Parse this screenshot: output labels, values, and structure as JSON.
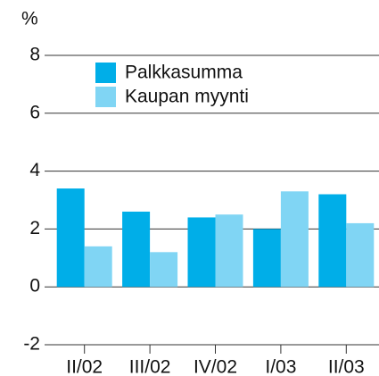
{
  "chart_data": {
    "type": "bar",
    "y_label": "%",
    "categories": [
      "II/02",
      "III/02",
      "IV/02",
      "I/03",
      "II/03"
    ],
    "series": [
      {
        "name": "Palkkasumma",
        "color": "#00aee8",
        "values": [
          3.4,
          2.6,
          2.4,
          2.0,
          3.2
        ]
      },
      {
        "name": "Kaupan myynti",
        "color": "#80d5f4",
        "values": [
          1.4,
          1.2,
          2.5,
          3.3,
          2.2
        ]
      }
    ],
    "ylim": [
      -2,
      8
    ],
    "yticks": [
      -2,
      0,
      2,
      4,
      6,
      8
    ],
    "grid": true
  }
}
